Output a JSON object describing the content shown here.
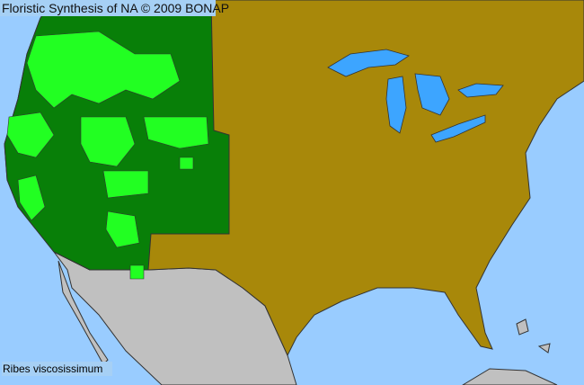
{
  "header": {
    "title": "Floristic Synthesis of NA © 2009 BONAP"
  },
  "map": {
    "species": "Ribes viscosissimum",
    "colors": {
      "ocean": "#99ccff",
      "lakes": "#3da5ff",
      "absent_county": "#a8880a",
      "present_state": "#087f08",
      "present_county": "#22ff22",
      "outside_range": "#c0c0c0",
      "borders": "#333333"
    }
  }
}
